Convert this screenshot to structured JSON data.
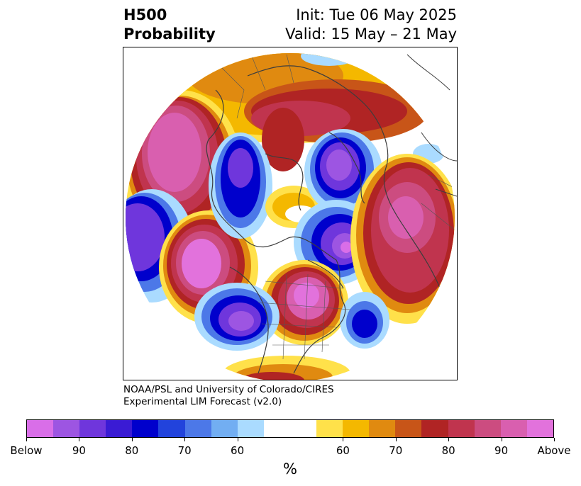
{
  "title": {
    "left_line1": "H500",
    "left_line2": "Probability",
    "right_line1": "Init: Tue 06 May 2025",
    "right_line2": "Valid: 15 May – 21 May"
  },
  "credit": {
    "line1": "NOAA/PSL and University of Colorado/CIRES",
    "line2": "Experimental LIM Forecast (v2.0)"
  },
  "colorbar": {
    "colors": [
      "#d96ee8",
      "#9d55e2",
      "#6f36dc",
      "#3a1bd4",
      "#0000cc",
      "#2243dc",
      "#4c78e8",
      "#72aef2",
      "#aadbff",
      "#ffffff",
      "#ffffff",
      "#ffe14a",
      "#f4b800",
      "#e08a10",
      "#c85518",
      "#b02424",
      "#c0344e",
      "#cc4c80",
      "#d95faf",
      "#e272dc"
    ],
    "ticks": [
      "Below",
      "90",
      "80",
      "70",
      "60",
      "60",
      "70",
      "80",
      "90",
      "Above"
    ],
    "unit": "%"
  },
  "map": {
    "projection": "north-polar-stereographic",
    "variable": "500 hPa height probability",
    "features": [
      "coastlines",
      "country-borders",
      "state-borders"
    ]
  }
}
